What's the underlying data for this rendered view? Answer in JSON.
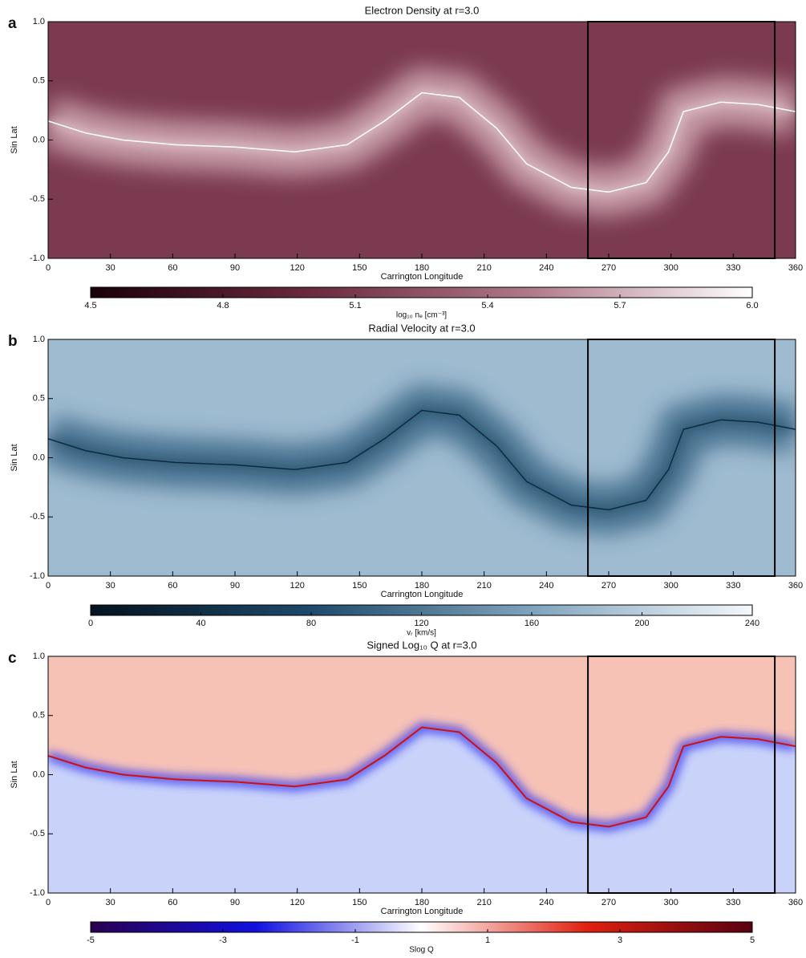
{
  "chart_data": [
    {
      "type": "heatmap",
      "panel": "a",
      "title": "Electron Density at r=3.0",
      "xlabel": "Carrington Longitude",
      "ylabel": "Sin Lat",
      "xlim": [
        0,
        360
      ],
      "xticks": [
        0,
        30,
        60,
        90,
        120,
        150,
        180,
        210,
        240,
        270,
        300,
        330,
        360
      ],
      "ylim": [
        -1,
        1
      ],
      "yticks": [
        {
          "value": -1,
          "label": "-1.0"
        },
        {
          "value": -0.5,
          "label": "-0.5"
        },
        {
          "value": 0,
          "label": "0.0"
        },
        {
          "value": 0.5,
          "label": "0.5"
        },
        {
          "value": 1,
          "label": "1.0"
        }
      ],
      "region": [
        260,
        350
      ],
      "colorbar": {
        "label": "log₁₀ nₑ [cm⁻³]",
        "lim": [
          4.5,
          6
        ],
        "ticks": [
          4.5,
          4.8,
          5.1,
          5.4,
          5.7,
          {
            "value": 6,
            "label": "6.0"
          }
        ],
        "colors": [
          "#1a0008",
          "#6b2a3e",
          "#b07a8a",
          "#ffffff"
        ]
      }
    },
    {
      "type": "heatmap",
      "panel": "b",
      "title": "Radial Velocity at r=3.0",
      "xlabel": "Carrington Longitude",
      "ylabel": "Sin Lat",
      "xlim": [
        0,
        360
      ],
      "xticks": [
        0,
        30,
        60,
        90,
        120,
        150,
        180,
        210,
        240,
        270,
        300,
        330,
        360
      ],
      "ylim": [
        -1,
        1
      ],
      "yticks": [
        {
          "value": -1,
          "label": "-1.0"
        },
        {
          "value": -0.5,
          "label": "-0.5"
        },
        {
          "value": 0,
          "label": "0.0"
        },
        {
          "value": 0.5,
          "label": "0.5"
        },
        {
          "value": 1,
          "label": "1.0"
        }
      ],
      "region": [
        260,
        350
      ],
      "colorbar": {
        "label": "vᵣ [km/s]",
        "lim": [
          0,
          240
        ],
        "ticks": [
          0,
          40,
          80,
          120,
          160,
          200,
          240
        ],
        "colors": [
          "#03121f",
          "#1e4a6b",
          "#7fa3bd",
          "#f4f8fb"
        ]
      }
    },
    {
      "type": "heatmap",
      "panel": "c",
      "title": "Signed Log₁₀ Q at r=3.0",
      "xlabel": "Carrington Longitude",
      "ylabel": "Sin Lat",
      "xlim": [
        0,
        360
      ],
      "xticks": [
        0,
        30,
        60,
        90,
        120,
        150,
        180,
        210,
        240,
        270,
        300,
        330,
        360
      ],
      "ylim": [
        -1,
        1
      ],
      "yticks": [
        {
          "value": -1,
          "label": "-1.0"
        },
        {
          "value": -0.5,
          "label": "-0.5"
        },
        {
          "value": 0,
          "label": "0.0"
        },
        {
          "value": 0.5,
          "label": "0.5"
        },
        {
          "value": 1,
          "label": "1.0"
        }
      ],
      "region": [
        260,
        350
      ],
      "colorbar": {
        "label": "Slog Q",
        "lim": [
          -5,
          5
        ],
        "ticks": [
          -5,
          -3,
          -1,
          1,
          3,
          5
        ],
        "colors": [
          "#2a0050",
          "#1010e0",
          "#ffffff",
          "#e02010",
          "#5a0010"
        ]
      }
    }
  ]
}
